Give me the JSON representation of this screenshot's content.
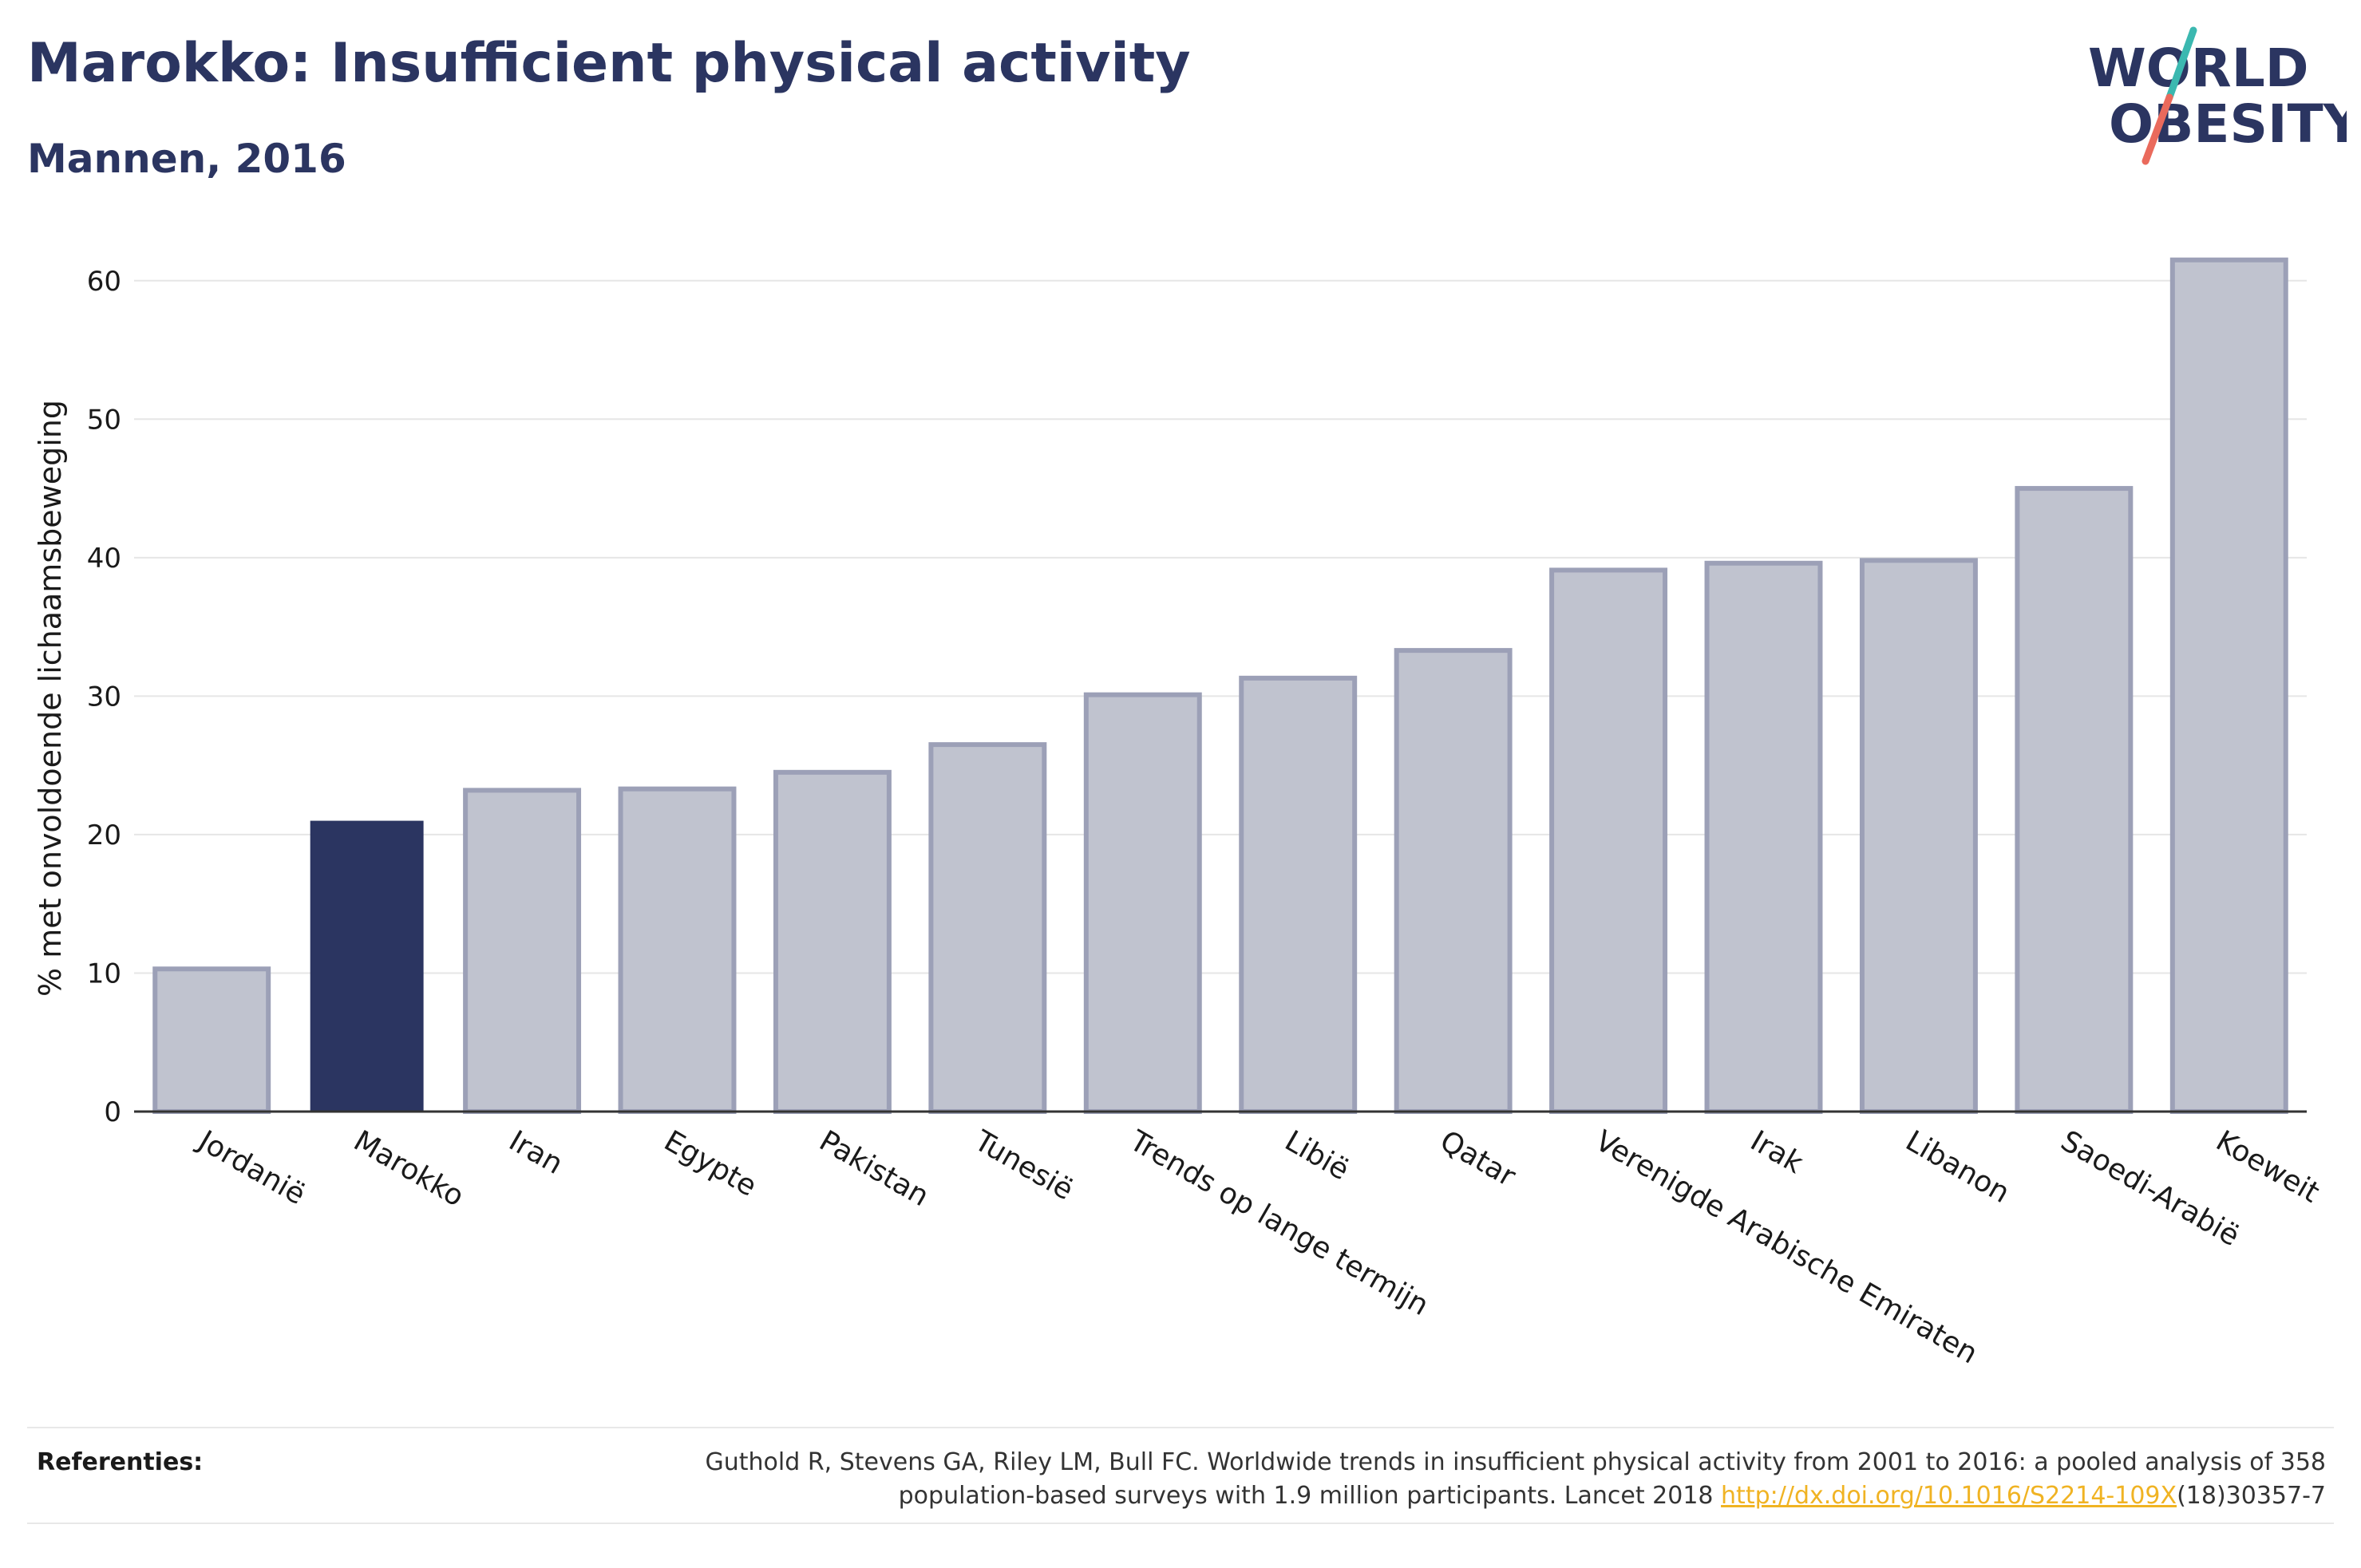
{
  "header": {
    "title": "Marokko: Insufficient physical activity",
    "subtitle": "Mannen, 2016"
  },
  "logo": {
    "line1": "WORLD",
    "line2": "OBESITY"
  },
  "colors": {
    "text": "#2b3561",
    "highlight_bar": "#2b3561",
    "bar_fill": "#c0c3cf",
    "bar_stroke": "#9ca0b7",
    "logo_teal": "#3bb8b0",
    "logo_coral": "#ea6a5c",
    "link": "#f0b323"
  },
  "chart_data": {
    "type": "bar",
    "ylabel": "% met onvoldoende lichaamsbeweging",
    "ylim": [
      0,
      65
    ],
    "yticks": [
      0,
      10,
      20,
      30,
      40,
      50,
      60
    ],
    "grid": true,
    "highlight": "Marokko",
    "categories": [
      "Jordanië",
      "Marokko",
      "Iran",
      "Egypte",
      "Pakistan",
      "Tunesië",
      "Trends op lange termijn",
      "Libië",
      "Qatar",
      "Verenigde Arabische Emiraten",
      "Irak",
      "Libanon",
      "Saoedi-Arabië",
      "Koeweit"
    ],
    "values": [
      10.3,
      21.0,
      23.2,
      23.3,
      24.5,
      26.5,
      30.1,
      31.3,
      33.3,
      39.1,
      39.6,
      39.8,
      45.0,
      61.5
    ]
  },
  "footer": {
    "label": "Referenties:",
    "text_before_link": "Guthold R, Stevens GA, Riley LM, Bull FC. Worldwide trends in insufficient physical activity from 2001 to 2016: a pooled analysis of 358 population-based surveys with 1.9 million participants. Lancet 2018 ",
    "link": "http://dx.doi.org/10.1016/S2214-109X",
    "text_after_link": "(18)30357-7"
  }
}
